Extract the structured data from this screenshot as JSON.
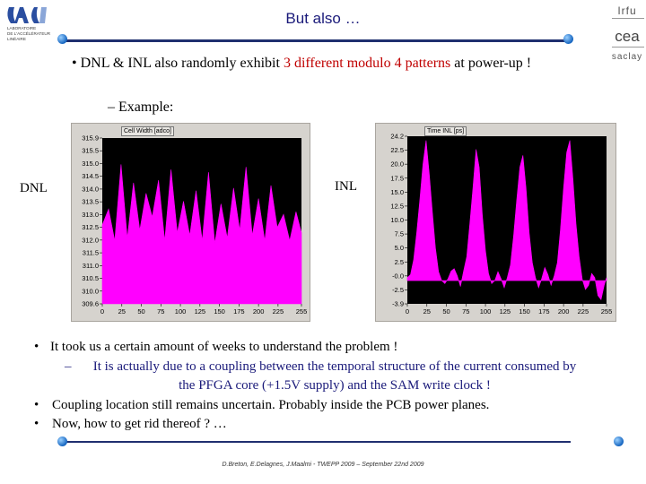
{
  "slide": {
    "title": "But also …",
    "bullet_main": {
      "prefix": "DNL & INL also randomly exhibit ",
      "highlight": "3 different modulo 4 patterns",
      "suffix": " at power-up !"
    },
    "sub_bullet": "– Example:",
    "label_left": "DNL",
    "label_right": "INL",
    "bottom_lines": [
      {
        "marker": "•",
        "text": "It took us a certain amount of weeks to understand the problem !"
      },
      {
        "marker": "–",
        "text": "It is actually due to a coupling between the temporal structure of the current consumed by the PFGA core (+1.5V supply) and the SAM write clock !"
      },
      {
        "marker": "•",
        "text": "Coupling location still remains uncertain. Probably inside the PCB power planes."
      },
      {
        "marker": "•",
        "text": "Now, how to get rid thereof ? …"
      }
    ],
    "footer": "D.Breton, E.Delagnes, J.Maalmi - TWEPP 2009 – September 22nd 2009",
    "logo_left_text": [
      "LABORATOIRE",
      "DE L'ACCÉLÉRATEUR",
      "LINÉAIRE"
    ],
    "logo_right_text": {
      "top": "Irfu",
      "mid": "cea",
      "bottom": "saclay"
    }
  },
  "colors": {
    "title": "#1a1a7a",
    "rule": "#1f2f6f",
    "highlight": "#c00000",
    "plot_fill": "#ff00ff",
    "plot_bg": "#000000",
    "panel": "#d6d3ce"
  },
  "chart_data": [
    {
      "type": "area",
      "title": "Cell Width [adco]",
      "x": [
        0,
        8,
        16,
        24,
        32,
        40,
        48,
        56,
        64,
        72,
        80,
        88,
        96,
        104,
        112,
        120,
        128,
        136,
        144,
        152,
        160,
        168,
        176,
        184,
        192,
        200,
        208,
        216,
        224,
        232,
        240,
        248,
        255
      ],
      "y": [
        312.6,
        313.2,
        312.0,
        314.9,
        312.1,
        314.2,
        312.4,
        313.8,
        312.9,
        314.3,
        312.0,
        314.7,
        312.3,
        313.5,
        312.2,
        313.9,
        312.0,
        314.6,
        311.9,
        313.4,
        312.1,
        314.0,
        312.4,
        314.8,
        312.2,
        313.6,
        312.0,
        314.1,
        312.5,
        313.0,
        312.0,
        313.1,
        312.3
      ],
      "xticks": [
        0,
        25,
        50,
        75,
        100,
        125,
        150,
        175,
        200,
        225,
        255
      ],
      "yticks": [
        "315.9",
        "315.5",
        "315.0",
        "314.5",
        "314.0",
        "313.5",
        "313.0",
        "312.5",
        "312.0",
        "311.5",
        "311.0",
        "310.5",
        "310.0",
        "309.6"
      ],
      "ylim": [
        309.6,
        315.9
      ]
    },
    {
      "type": "area",
      "title": "Time INL [ps]",
      "x": [
        0,
        4,
        8,
        12,
        16,
        20,
        24,
        28,
        32,
        36,
        40,
        44,
        48,
        52,
        56,
        60,
        64,
        68,
        72,
        76,
        80,
        84,
        88,
        92,
        96,
        100,
        104,
        108,
        112,
        116,
        120,
        124,
        128,
        132,
        136,
        140,
        144,
        148,
        152,
        156,
        160,
        164,
        168,
        172,
        176,
        180,
        184,
        188,
        192,
        196,
        200,
        204,
        208,
        212,
        216,
        220,
        224,
        228,
        232,
        236,
        240,
        244,
        248,
        252,
        255
      ],
      "y": [
        0.5,
        1.0,
        3.5,
        8.0,
        13.5,
        19.5,
        23.5,
        18.0,
        11.5,
        5.5,
        1.5,
        0.0,
        -0.5,
        0.3,
        1.6,
        2.0,
        0.8,
        -1.0,
        1.6,
        4.0,
        9.5,
        15.5,
        22.0,
        19.0,
        11.0,
        5.0,
        1.2,
        -0.5,
        0.0,
        1.5,
        0.3,
        -1.2,
        0.5,
        2.6,
        7.5,
        13.5,
        19.0,
        21.0,
        15.5,
        8.0,
        3.0,
        0.5,
        -1.2,
        0.3,
        2.2,
        1.0,
        -0.8,
        0.8,
        3.0,
        8.5,
        15.5,
        21.5,
        23.5,
        17.0,
        9.5,
        4.0,
        0.2,
        -1.5,
        -0.8,
        1.2,
        0.5,
        -2.5,
        -3.2,
        -0.8,
        0.5
      ],
      "xticks": [
        0,
        25,
        50,
        75,
        100,
        125,
        150,
        175,
        200,
        225,
        255
      ],
      "yticks": [
        "24.2",
        "22.5",
        "20.0",
        "17.5",
        "15.0",
        "12.5",
        "10.0",
        "7.5",
        "5.0",
        "2.5",
        "-0.0",
        "-2.5",
        "-3.9"
      ],
      "ylim": [
        -3.9,
        24.2
      ]
    }
  ]
}
